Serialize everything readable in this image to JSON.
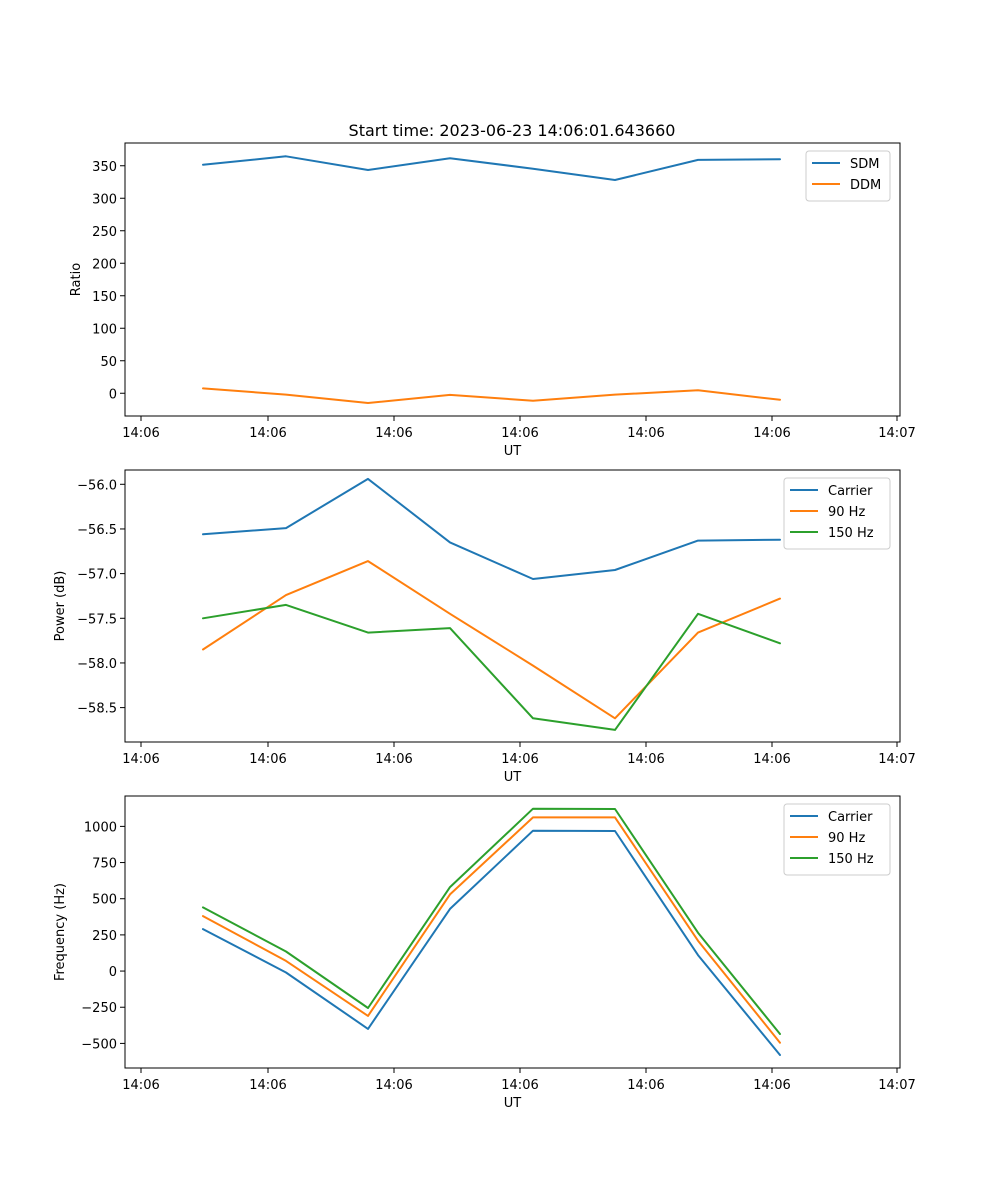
{
  "title": "Start time: 2023-06-23 14:06:01.643660",
  "colors": {
    "blue": "#1f77b4",
    "orange": "#ff7f0e",
    "green": "#2ca02c"
  },
  "chart_data": [
    {
      "type": "line",
      "title": "Start time: 2023-06-23 14:06:01.643660",
      "xlabel": "UT",
      "ylabel": "Ratio",
      "x_tick_labels": [
        "14:06",
        "14:06",
        "14:06",
        "14:06",
        "14:06",
        "14:06",
        "14:07"
      ],
      "y_ticks": [
        0,
        50,
        100,
        150,
        200,
        250,
        300,
        350
      ],
      "ylim": [
        -35,
        385
      ],
      "legend": "top-right",
      "grid": false,
      "series": [
        {
          "name": "SDM",
          "color": "#1f77b4",
          "values": [
            351.5,
            364.5,
            343.5,
            361.5,
            345.5,
            328.0,
            359.0,
            360.0
          ]
        },
        {
          "name": "DDM",
          "color": "#ff7f0e",
          "values": [
            7.5,
            -2.0,
            -15.0,
            -2.5,
            -11.5,
            -2.0,
            4.5,
            -10.0
          ]
        }
      ]
    },
    {
      "type": "line",
      "title": "",
      "xlabel": "UT",
      "ylabel": "Power (dB)",
      "x_tick_labels": [
        "14:06",
        "14:06",
        "14:06",
        "14:06",
        "14:06",
        "14:06",
        "14:07"
      ],
      "y_ticks": [
        -58.5,
        -58.0,
        -57.5,
        -57.0,
        -56.5,
        -56.0
      ],
      "y_tick_labels": [
        "−58.5",
        "−58.0",
        "−57.5",
        "−57.0",
        "−56.5",
        "−56.0"
      ],
      "ylim": [
        -58.885,
        -55.84
      ],
      "legend": "top-right",
      "grid": false,
      "series": [
        {
          "name": "Carrier",
          "color": "#1f77b4",
          "values": [
            -56.56,
            -56.49,
            -55.94,
            -56.65,
            -57.06,
            -56.96,
            -56.63,
            -56.62
          ]
        },
        {
          "name": "90 Hz",
          "color": "#ff7f0e",
          "values": [
            -57.85,
            -57.24,
            -56.86,
            -57.45,
            -58.03,
            -58.62,
            -57.66,
            -57.28
          ]
        },
        {
          "name": "150 Hz",
          "color": "#2ca02c",
          "values": [
            -57.5,
            -57.35,
            -57.66,
            -57.61,
            -58.62,
            -58.75,
            -57.45,
            -57.78
          ]
        }
      ]
    },
    {
      "type": "line",
      "title": "",
      "xlabel": "UT",
      "ylabel": "Frequency (Hz)",
      "x_tick_labels": [
        "14:06",
        "14:06",
        "14:06",
        "14:06",
        "14:06",
        "14:06",
        "14:07"
      ],
      "y_ticks": [
        -500,
        -250,
        0,
        250,
        500,
        750,
        1000
      ],
      "y_tick_labels": [
        "−500",
        "−250",
        "0",
        "250",
        "500",
        "750",
        "1000"
      ],
      "ylim": [
        -670,
        1210
      ],
      "legend": "top-right",
      "grid": false,
      "series": [
        {
          "name": "Carrier",
          "color": "#1f77b4",
          "values": [
            290,
            -10,
            -400,
            430,
            970,
            968,
            110,
            -580
          ]
        },
        {
          "name": "90 Hz",
          "color": "#ff7f0e",
          "values": [
            380,
            70,
            -310,
            530,
            1062,
            1062,
            210,
            -495
          ]
        },
        {
          "name": "150 Hz",
          "color": "#2ca02c",
          "values": [
            440,
            135,
            -255,
            580,
            1122,
            1120,
            265,
            -435
          ]
        }
      ]
    }
  ]
}
